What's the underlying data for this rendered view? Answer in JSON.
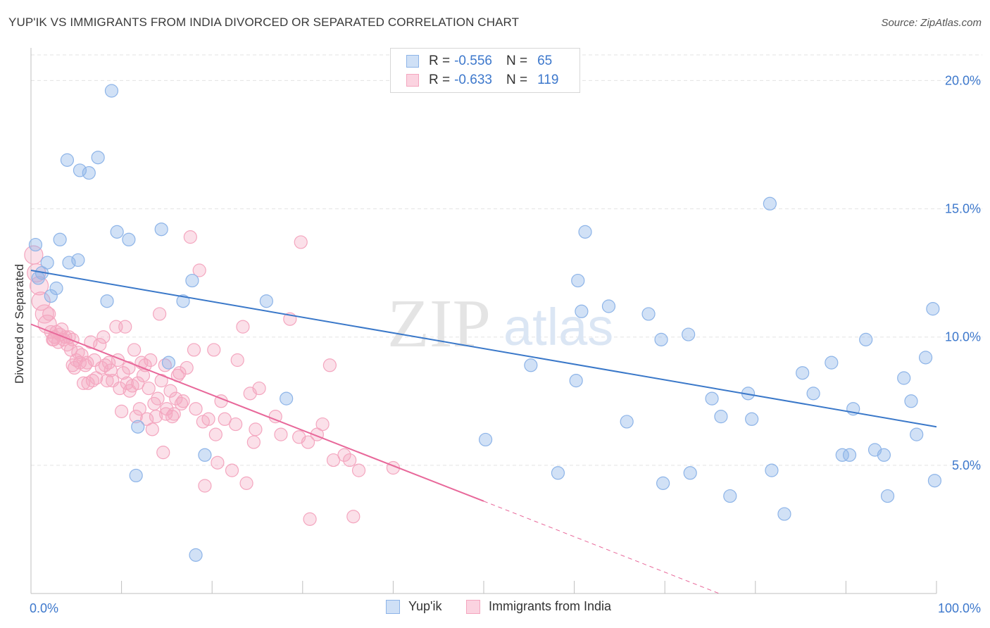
{
  "title": "YUP'IK VS IMMIGRANTS FROM INDIA DIVORCED OR SEPARATED CORRELATION CHART",
  "source": "Source: ZipAtlas.com",
  "watermark": {
    "zip": "ZIP",
    "atlas": "atlas"
  },
  "legend_top": {
    "rows": [
      {
        "r_label": "R =",
        "r_value": "-0.556",
        "n_label": "N =",
        "n_value": "65",
        "color": "#8db4e8"
      },
      {
        "r_label": "R =",
        "r_value": "-0.633",
        "n_label": "N =",
        "n_value": "119",
        "color": "#f4a6bf"
      }
    ]
  },
  "chart_data": {
    "type": "scatter",
    "title": "YUP'IK VS IMMIGRANTS FROM INDIA DIVORCED OR SEPARATED CORRELATION CHART",
    "xlabel": "",
    "ylabel": "Divorced or Separated",
    "xlim": [
      0,
      100
    ],
    "ylim": [
      0,
      21
    ],
    "x_tick_labels": [
      "0.0%",
      "100.0%"
    ],
    "y_ticks": [
      5,
      10,
      15,
      20
    ],
    "y_tick_labels": [
      "5.0%",
      "10.0%",
      "15.0%",
      "20.0%"
    ],
    "grid": true,
    "legend_position": "top-center",
    "series": [
      {
        "name": "Yup'ik",
        "color": "#8db4e8",
        "line_color": "#3a78c9",
        "trend": {
          "x": [
            0,
            100
          ],
          "y": [
            12.6,
            6.5
          ],
          "dashed_extension": false
        },
        "points": [
          [
            0.5,
            13.6
          ],
          [
            1.2,
            12.5
          ],
          [
            1.8,
            12.9
          ],
          [
            2.2,
            11.6
          ],
          [
            2.8,
            11.9
          ],
          [
            3.2,
            13.8
          ],
          [
            4,
            16.9
          ],
          [
            4.2,
            12.9
          ],
          [
            5.2,
            13.0
          ],
          [
            5.4,
            16.5
          ],
          [
            6.4,
            16.4
          ],
          [
            7.4,
            17.0
          ],
          [
            8.4,
            11.4
          ],
          [
            8.9,
            19.6
          ],
          [
            9.5,
            14.1
          ],
          [
            10.8,
            13.8
          ],
          [
            11.8,
            6.5
          ],
          [
            11.6,
            4.6
          ],
          [
            14.4,
            14.2
          ],
          [
            15.2,
            9.0
          ],
          [
            16.8,
            11.4
          ],
          [
            17.8,
            12.2
          ],
          [
            18.2,
            1.5
          ],
          [
            19.2,
            5.4
          ],
          [
            26.0,
            11.4
          ],
          [
            28.2,
            7.6
          ],
          [
            50.2,
            6.0
          ],
          [
            55.2,
            8.9
          ],
          [
            58.2,
            4.7
          ],
          [
            60.2,
            8.3
          ],
          [
            60.4,
            12.2
          ],
          [
            60.8,
            11.0
          ],
          [
            61.2,
            14.1
          ],
          [
            63.8,
            11.2
          ],
          [
            65.8,
            6.7
          ],
          [
            68.2,
            10.9
          ],
          [
            69.8,
            4.3
          ],
          [
            69.6,
            9.9
          ],
          [
            72.8,
            4.7
          ],
          [
            72.6,
            10.1
          ],
          [
            75.2,
            7.6
          ],
          [
            76.2,
            6.9
          ],
          [
            77.2,
            3.8
          ],
          [
            79.2,
            7.8
          ],
          [
            79.6,
            6.8
          ],
          [
            81.6,
            15.2
          ],
          [
            81.8,
            4.8
          ],
          [
            83.2,
            3.1
          ],
          [
            85.2,
            8.6
          ],
          [
            86.4,
            7.8
          ],
          [
            88.4,
            9.0
          ],
          [
            89.6,
            5.4
          ],
          [
            90.4,
            5.4
          ],
          [
            90.8,
            7.2
          ],
          [
            92.2,
            9.9
          ],
          [
            93.2,
            5.6
          ],
          [
            94.2,
            5.4
          ],
          [
            94.6,
            3.8
          ],
          [
            96.4,
            8.4
          ],
          [
            97.2,
            7.5
          ],
          [
            97.8,
            6.2
          ],
          [
            98.8,
            9.2
          ],
          [
            99.6,
            11.1
          ],
          [
            99.8,
            4.4
          ],
          [
            0.8,
            12.3
          ]
        ]
      },
      {
        "name": "Immigrants from India",
        "color": "#f4a6bf",
        "line_color": "#e8689a",
        "trend": {
          "x": [
            0,
            50
          ],
          "y": [
            10.5,
            3.6
          ],
          "dashed_to": [
            76,
            0
          ]
        },
        "points": [
          [
            0.3,
            13.2
          ],
          [
            0.6,
            12.5
          ],
          [
            0.9,
            12.0
          ],
          [
            1.1,
            11.4
          ],
          [
            1.5,
            10.9
          ],
          [
            1.8,
            10.5
          ],
          [
            2.0,
            10.9
          ],
          [
            2.2,
            10.2
          ],
          [
            2.4,
            9.9
          ],
          [
            2.6,
            10.0
          ],
          [
            2.8,
            10.2
          ],
          [
            3.0,
            9.8
          ],
          [
            3.2,
            10.1
          ],
          [
            3.4,
            10.3
          ],
          [
            3.6,
            9.9
          ],
          [
            3.8,
            10.0
          ],
          [
            4.0,
            9.7
          ],
          [
            4.2,
            10.0
          ],
          [
            4.4,
            9.5
          ],
          [
            4.6,
            9.9
          ],
          [
            4.8,
            8.8
          ],
          [
            5.0,
            9.1
          ],
          [
            5.2,
            9.4
          ],
          [
            5.4,
            9.0
          ],
          [
            5.6,
            9.3
          ],
          [
            5.8,
            8.2
          ],
          [
            6.0,
            8.9
          ],
          [
            6.2,
            9.0
          ],
          [
            6.6,
            9.8
          ],
          [
            6.8,
            8.3
          ],
          [
            7.0,
            9.1
          ],
          [
            7.2,
            8.4
          ],
          [
            7.6,
            9.7
          ],
          [
            7.8,
            8.8
          ],
          [
            8.0,
            10.0
          ],
          [
            8.2,
            8.9
          ],
          [
            8.4,
            8.3
          ],
          [
            8.6,
            9.0
          ],
          [
            8.8,
            8.7
          ],
          [
            9.0,
            8.3
          ],
          [
            9.4,
            10.4
          ],
          [
            9.6,
            9.1
          ],
          [
            9.8,
            8.0
          ],
          [
            10.0,
            7.1
          ],
          [
            10.2,
            8.6
          ],
          [
            10.4,
            10.4
          ],
          [
            10.6,
            8.2
          ],
          [
            10.8,
            8.8
          ],
          [
            11.2,
            8.1
          ],
          [
            11.4,
            9.5
          ],
          [
            11.6,
            6.9
          ],
          [
            11.8,
            8.2
          ],
          [
            12.0,
            7.2
          ],
          [
            12.2,
            9.0
          ],
          [
            12.4,
            8.5
          ],
          [
            12.6,
            8.9
          ],
          [
            12.8,
            6.8
          ],
          [
            13.0,
            8.0
          ],
          [
            13.2,
            9.1
          ],
          [
            13.4,
            6.4
          ],
          [
            13.6,
            7.4
          ],
          [
            13.8,
            6.9
          ],
          [
            14.0,
            7.6
          ],
          [
            14.2,
            10.9
          ],
          [
            14.4,
            8.3
          ],
          [
            14.6,
            5.5
          ],
          [
            14.8,
            8.9
          ],
          [
            15.0,
            7.2
          ],
          [
            15.4,
            7.9
          ],
          [
            15.6,
            6.9
          ],
          [
            15.8,
            7.0
          ],
          [
            16.0,
            7.6
          ],
          [
            16.4,
            8.6
          ],
          [
            16.6,
            7.4
          ],
          [
            16.8,
            7.5
          ],
          [
            17.2,
            8.8
          ],
          [
            17.6,
            13.9
          ],
          [
            18.0,
            9.5
          ],
          [
            18.2,
            7.2
          ],
          [
            18.6,
            12.6
          ],
          [
            19.0,
            6.7
          ],
          [
            19.2,
            4.2
          ],
          [
            19.6,
            6.8
          ],
          [
            20.2,
            9.5
          ],
          [
            20.4,
            6.2
          ],
          [
            20.6,
            5.1
          ],
          [
            21.0,
            7.5
          ],
          [
            21.4,
            6.8
          ],
          [
            22.2,
            4.8
          ],
          [
            22.6,
            6.6
          ],
          [
            22.8,
            9.1
          ],
          [
            23.4,
            10.4
          ],
          [
            23.8,
            4.3
          ],
          [
            24.2,
            7.8
          ],
          [
            24.6,
            5.9
          ],
          [
            24.8,
            6.4
          ],
          [
            25.2,
            8.0
          ],
          [
            27.0,
            6.9
          ],
          [
            27.6,
            6.2
          ],
          [
            28.6,
            10.7
          ],
          [
            29.6,
            6.1
          ],
          [
            29.8,
            13.7
          ],
          [
            30.6,
            5.9
          ],
          [
            30.8,
            2.9
          ],
          [
            31.6,
            6.2
          ],
          [
            32.2,
            6.6
          ],
          [
            33.0,
            8.9
          ],
          [
            33.4,
            5.2
          ],
          [
            34.6,
            5.4
          ],
          [
            35.2,
            5.2
          ],
          [
            35.6,
            3.0
          ],
          [
            36.2,
            4.8
          ],
          [
            40.0,
            4.9
          ],
          [
            6.3,
            8.2
          ],
          [
            10.9,
            7.9
          ],
          [
            4.6,
            8.9
          ],
          [
            2.5,
            9.9
          ],
          [
            16.2,
            8.5
          ],
          [
            14.9,
            7.0
          ]
        ]
      }
    ]
  },
  "legend_bottom": {
    "items": [
      {
        "label": "Yup'ik",
        "color": "#8db4e8"
      },
      {
        "label": "Immigrants from India",
        "color": "#f4a6bf"
      }
    ]
  }
}
